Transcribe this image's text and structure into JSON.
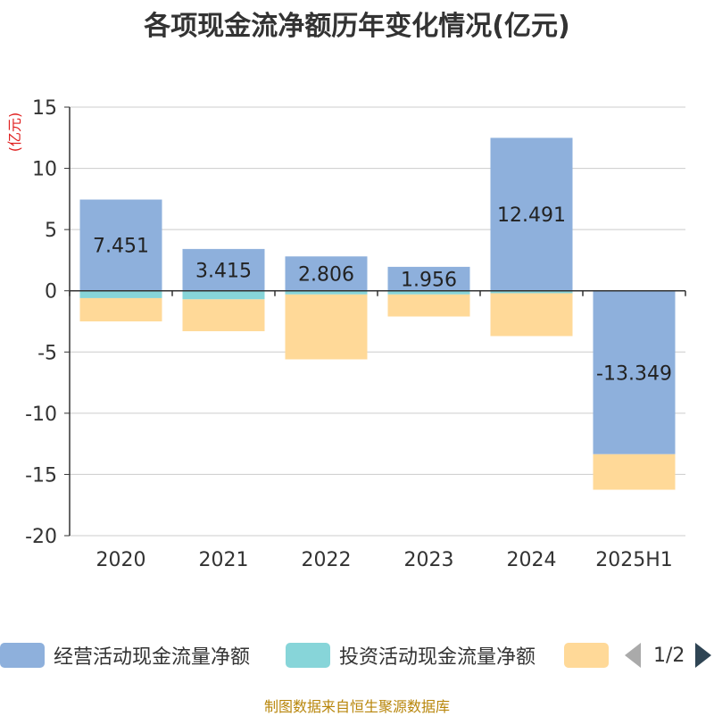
{
  "chart_data": {
    "type": "bar",
    "stacked": true,
    "title": "各项现金流净额历年变化情况(亿元)",
    "ylabel": "(亿元)",
    "categories": [
      "2020",
      "2021",
      "2022",
      "2023",
      "2024",
      "2025H1"
    ],
    "ylim": [
      -20,
      15
    ],
    "yticks": [
      15,
      10,
      5,
      0,
      -5,
      -10,
      -15,
      -20
    ],
    "grid": true,
    "legend_position": "bottom",
    "series": [
      {
        "name": "经营活动现金流量净额",
        "color": "#8eb0dc",
        "values": [
          7.451,
          3.415,
          2.806,
          1.956,
          12.491,
          -13.349
        ],
        "labels": [
          "7.451",
          "3.415",
          "2.806",
          "1.956",
          "12.491",
          "-13.349"
        ]
      },
      {
        "name": "投资活动现金流量净额",
        "color": "#87d5d9",
        "values": [
          -0.6,
          -0.7,
          -0.3,
          -0.3,
          -0.2,
          0
        ]
      },
      {
        "name": "",
        "color": "#ffd998",
        "values": [
          -1.9,
          -2.6,
          -5.3,
          -1.8,
          -3.5,
          -2.9
        ]
      }
    ]
  },
  "legend": {
    "item1": "经营活动现金流量净额",
    "item2": "投资活动现金流量净额",
    "page": "1/2"
  },
  "source": "制图数据来自恒生聚源数据库"
}
